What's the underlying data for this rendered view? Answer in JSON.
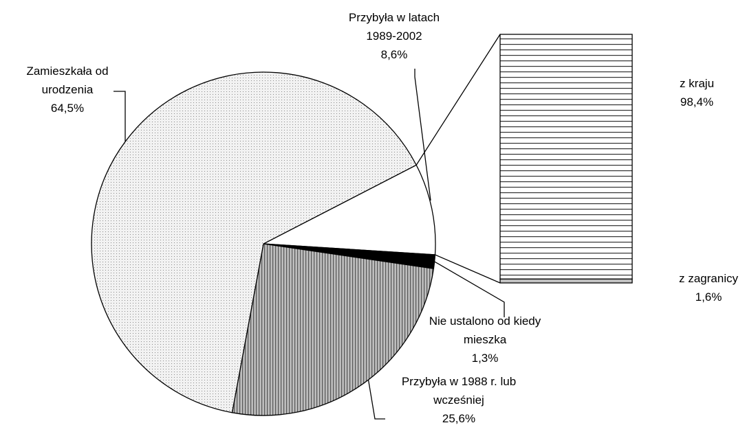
{
  "chart_data": {
    "type": "pie-of-bar",
    "categories": [
      "Przybyła w latach 1989-2002",
      "Nie ustalono od kiedy mieszka",
      "Przybyła w 1988 r. lub wcześniej",
      "Zamieszkała od urodzenia"
    ],
    "values": [
      8.6,
      1.3,
      25.6,
      64.5
    ],
    "value_labels": [
      "8,6%",
      "1,3%",
      "25,6%",
      "64,5%"
    ],
    "colors": [
      "#ffffff",
      "#000000",
      "#bdbdbd",
      "#f2f2f2"
    ],
    "bar": {
      "categories": [
        "z kraju",
        "z zagranicy"
      ],
      "values": [
        98.4,
        1.6
      ],
      "value_labels": [
        "98,4%",
        "1,6%"
      ],
      "colors": [
        "#ffffff",
        "#c0c0c0"
      ]
    }
  }
}
